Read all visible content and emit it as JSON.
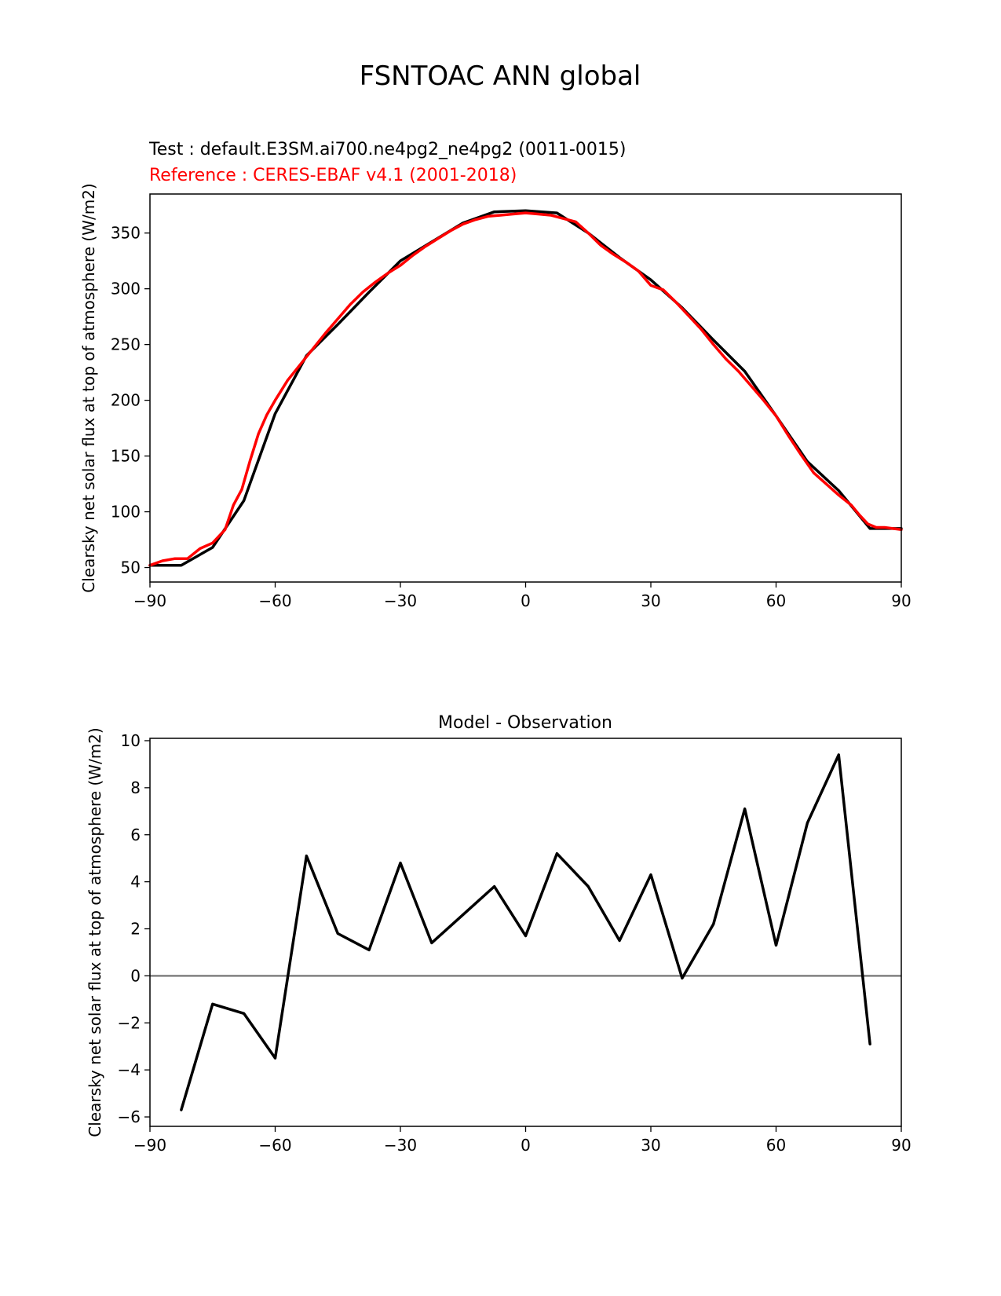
{
  "figure": {
    "title": "FSNTOAC ANN global"
  },
  "chart_data": [
    {
      "type": "line",
      "name": "top-panel",
      "test_label": "Test : default.E3SM.ai700.ne4pg2_ne4pg2 (0011-0015)",
      "reference_label": "Reference : CERES-EBAF v4.1 (2001-2018)",
      "xlabel": "",
      "ylabel": "Clearsky net solar flux at top of atmosphere (W/m2)",
      "xlim": [
        -90,
        90
      ],
      "ylim": [
        37,
        385
      ],
      "xticks": [
        -90,
        -60,
        -30,
        0,
        30,
        60,
        90
      ],
      "xtick_labels": [
        "−90",
        "−60",
        "−30",
        "0",
        "30",
        "60",
        "90"
      ],
      "yticks": [
        50,
        100,
        150,
        200,
        250,
        300,
        350
      ],
      "ytick_labels": [
        "50",
        "100",
        "150",
        "200",
        "250",
        "300",
        "350"
      ],
      "colors": {
        "test": "#000000",
        "reference": "#ff0000"
      },
      "series": [
        {
          "role": "test",
          "x": [
            -90,
            -82.5,
            -75,
            -67.5,
            -60,
            -52.5,
            -45,
            -37.5,
            -30,
            -22.5,
            -15,
            -7.5,
            0,
            7.5,
            15,
            22.5,
            30,
            37.5,
            45,
            52.5,
            60,
            67.5,
            75,
            82.5,
            90
          ],
          "y": [
            52,
            52,
            68,
            110,
            188,
            240,
            268,
            297,
            325,
            342,
            359,
            369,
            370,
            368,
            350,
            328,
            308,
            283,
            254,
            226,
            186,
            145,
            119,
            85,
            85
          ]
        },
        {
          "role": "reference",
          "x": [
            -90,
            -87,
            -84,
            -81,
            -78,
            -75,
            -72,
            -70,
            -68,
            -66,
            -64,
            -62,
            -60,
            -57,
            -54,
            -51,
            -48,
            -45,
            -42,
            -39,
            -36,
            -33,
            -30,
            -27,
            -24,
            -21,
            -18,
            -15,
            -12,
            -9,
            -6,
            -3,
            0,
            3,
            6,
            9,
            12,
            15,
            18,
            21,
            24,
            27,
            30,
            33,
            36,
            39,
            42,
            45,
            48,
            51,
            54,
            57,
            60,
            63,
            66,
            69,
            72,
            75,
            78,
            80,
            82,
            84,
            86,
            88,
            90
          ],
          "y": [
            52,
            56,
            58,
            58,
            67,
            72,
            84,
            106,
            120,
            146,
            170,
            187,
            200,
            218,
            232,
            246,
            260,
            273,
            286,
            297,
            306,
            314,
            321,
            330,
            338,
            345,
            352,
            358,
            362,
            365,
            366,
            367,
            368,
            367,
            366,
            363,
            360,
            350,
            339,
            331,
            324,
            316,
            303,
            299,
            288,
            276,
            264,
            250,
            237,
            226,
            213,
            200,
            186,
            168,
            151,
            135,
            125,
            115,
            106,
            97,
            89,
            86,
            86,
            85,
            84
          ]
        }
      ]
    },
    {
      "type": "line",
      "name": "bottom-panel",
      "title": "Model - Observation",
      "xlabel": "",
      "ylabel": "Clearsky net solar flux at top of atmosphere (W/m2)",
      "xlim": [
        -90,
        90
      ],
      "ylim": [
        -6.4,
        10.1
      ],
      "xticks": [
        -90,
        -60,
        -30,
        0,
        30,
        60,
        90
      ],
      "xtick_labels": [
        "−90",
        "−60",
        "−30",
        "0",
        "30",
        "60",
        "90"
      ],
      "yticks": [
        -6,
        -4,
        -2,
        0,
        2,
        4,
        6,
        8,
        10
      ],
      "ytick_labels": [
        "−6",
        "−4",
        "−2",
        "0",
        "2",
        "4",
        "6",
        "8",
        "10"
      ],
      "zero_line": {
        "y": 0,
        "color": "#808080"
      },
      "colors": {
        "diff": "#000000"
      },
      "series": [
        {
          "role": "difference",
          "x": [
            -82.5,
            -75,
            -67.5,
            -60,
            -52.5,
            -45,
            -37.5,
            -30,
            -22.5,
            -15,
            -7.5,
            0,
            7.5,
            15,
            22.5,
            30,
            37.5,
            45,
            52.5,
            60,
            67.5,
            75,
            82.5
          ],
          "y": [
            -5.7,
            -1.2,
            -1.6,
            -3.5,
            5.1,
            1.8,
            1.1,
            4.8,
            1.4,
            2.6,
            3.8,
            1.7,
            5.2,
            3.8,
            1.5,
            4.3,
            -0.1,
            2.2,
            7.1,
            1.3,
            6.5,
            9.4,
            -2.9
          ]
        }
      ]
    }
  ]
}
